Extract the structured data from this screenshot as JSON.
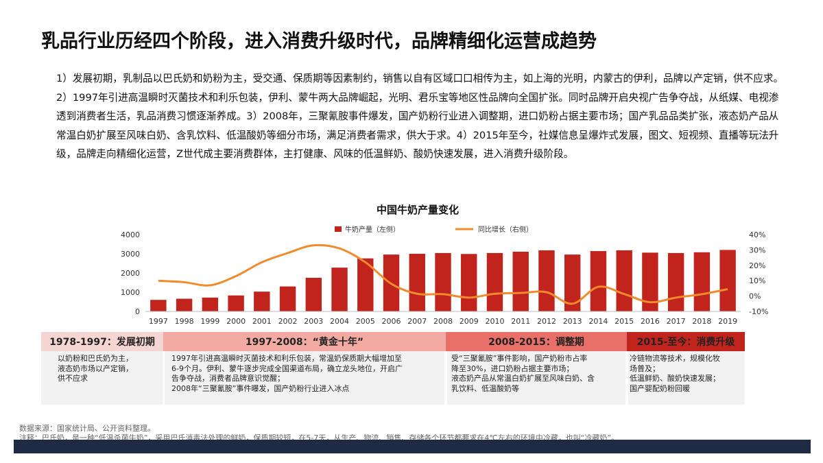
{
  "title": "乳品行业历经四个阶段，进入消费升级时代，品牌精细化运营成趋势",
  "paragraph": "1）发展初期，乳制品以巴氏奶和奶粉为主，受交通、保质期等因素制约，销售以自有区域口口相传为主，如上海的光明，内蒙古的伊利，品牌以产定销，供不应求。2）1997年引进高温瞬时灭菌技术和利乐包装，伊利、蒙牛两大品牌崛起，光明、君乐宝等地区性品牌向全国扩张。同时品牌开启央视广告争夺战，从纸媒、电视渗透到消费者生活，乳品消费习惯逐渐养成。3）2008年，三聚氰胺事件爆发，国产奶粉行业进入调整期，进口奶粉占据主要市场；国产乳品品类扩张，液态奶产品从常温白奶扩展至风味白奶、含乳饮料、低温酸奶等细分市场，满足消费者需求，供大于求。4）2015年至今，社媒信息呈爆炸式发展，图文、短视频、直播等玩法升级，品牌走向精细化运营，Z世代成主要消费群体，主打健康、风味的低温鲜奶、酸奶快速发展，进入消费升级阶段。",
  "chart_data": {
    "type": "bar",
    "title": "中国牛奶产量变化",
    "categories": [
      "1997",
      "1998",
      "1999",
      "2000",
      "2001",
      "2002",
      "2003",
      "2004",
      "2005",
      "2006",
      "2007",
      "2008",
      "2009",
      "2010",
      "2011",
      "2012",
      "2013",
      "2014",
      "2015",
      "2016",
      "2017",
      "2018",
      "2019"
    ],
    "series": [
      {
        "name": "牛奶产量（左侧）",
        "type": "bar",
        "axis": "left",
        "color": "#c0241c",
        "values": [
          600,
          660,
          720,
          830,
          1030,
          1300,
          1750,
          2280,
          2760,
          2960,
          3000,
          3040,
          2990,
          3040,
          3110,
          3180,
          2960,
          3140,
          3180,
          3060,
          3040,
          3080,
          3200
        ]
      },
      {
        "name": "同比增长（右侧）",
        "type": "line",
        "axis": "right",
        "color": "#f28a2e",
        "values": [
          0.1,
          0.09,
          0.07,
          0.13,
          0.22,
          0.28,
          0.33,
          0.31,
          0.22,
          0.08,
          0.015,
          0.012,
          -0.01,
          0.015,
          0.02,
          0.025,
          -0.05,
          0.06,
          0.013,
          -0.04,
          -0.01,
          0.012,
          0.045
        ]
      }
    ],
    "left_axis": {
      "ticks": [
        "0",
        "1000",
        "2000",
        "3000",
        "4000"
      ],
      "range": [
        0,
        4000
      ]
    },
    "right_axis": {
      "ticks": [
        "-10%",
        "0%",
        "10%",
        "20%",
        "30%",
        "40%"
      ],
      "range": [
        -0.1,
        0.4
      ]
    },
    "legend_position": "top",
    "grid": false
  },
  "stages": [
    {
      "label": "1978-1997：发展初期",
      "bg": "#f6d6d3",
      "fg": "#222222",
      "desc": [
        "以奶粉和巴氏奶为主，",
        "液态奶市场以产定销，",
        "供不应求"
      ]
    },
    {
      "label": "1997-2008：“黄金十年”",
      "bg": "#f2aaa3",
      "fg": "#222222",
      "desc": [
        "1997年引进高温瞬时灭菌技术和利乐包装，常温奶保质期大幅增加至",
        "6-9个月。伊利、蒙牛逐步完成全国渠道布局，确立龙头地位，开启广",
        "告争夺战，消费者品牌意识觉醒；",
        "2008年“三聚氰胺”事件曝发，国产奶粉行业进入冰点"
      ]
    },
    {
      "label": "2008-2015：调整期",
      "bg": "#e87069",
      "fg": "#222222",
      "desc": [
        "受“三聚氰胺”事件影响，国产奶粉市占率",
        "降至30%，进口奶粉占据主要市场；",
        "液态奶产品从常温白奶扩展至风味白奶、含",
        "乳饮料、低温酸奶等"
      ]
    },
    {
      "label": "2015-至今：消费升级",
      "bg": "#c0241c",
      "fg": "#222222",
      "desc": [
        "冷链物流等技术，规模化牧",
        "场普及；",
        "低温鲜奶、酸奶快速发展；",
        "国产婴配奶粉回暖"
      ]
    }
  ],
  "source": "数据来源：国家统计局、公开资料整理。",
  "note": "注释：巴氏奶，是一种“低温杀菌牛奶”，采用巴氏消毒法处理的鲜奶，保质期较短，在5-7天，从生产、物流、销售、存储各个环节都要求在4℃左右的环境中冷藏，也叫“冷藏奶”。"
}
